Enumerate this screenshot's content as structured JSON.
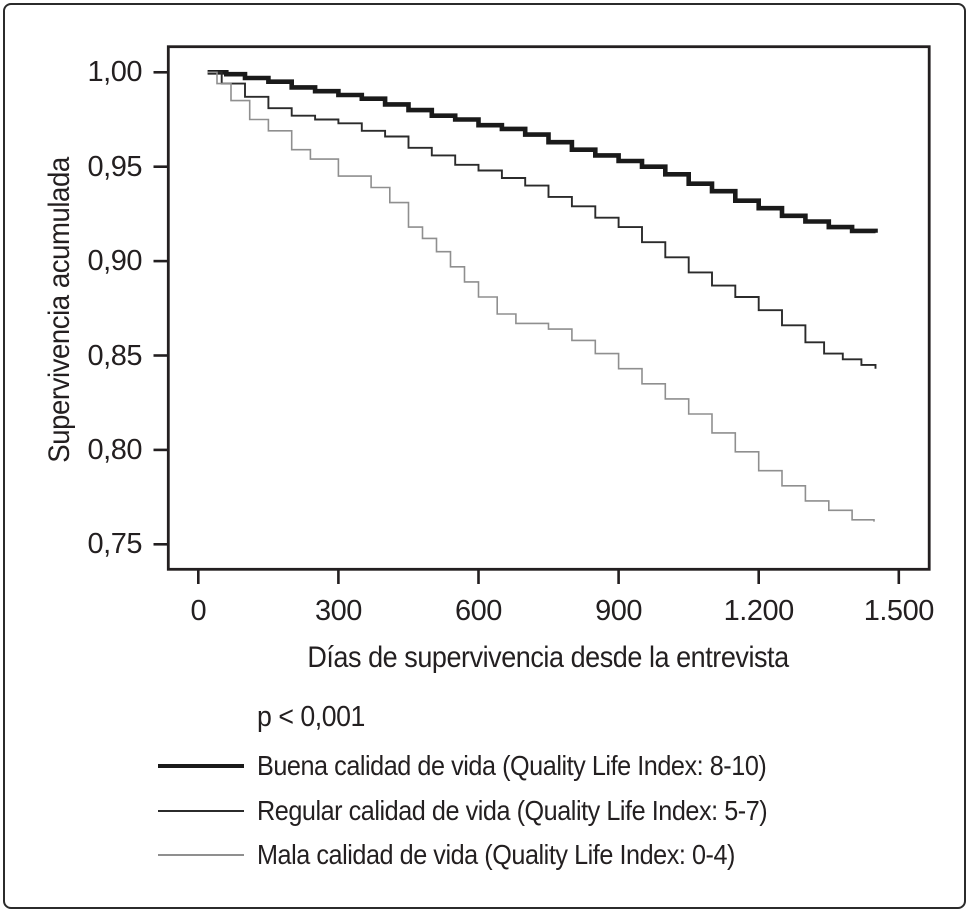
{
  "figure": {
    "background": "#ffffff",
    "border_color": "#2b2b2b",
    "text_color": "#231f20"
  },
  "chart_data": {
    "type": "line",
    "subtype": "kaplan-meier-step-survival",
    "title": "",
    "xlabel": "Días de supervivencia desde la entrevista",
    "ylabel": "Supervivencia acumulada",
    "annotation": "p < 0,001",
    "xlim": [
      0,
      1500
    ],
    "ylim": [
      0.75,
      1.0
    ],
    "grid": false,
    "legend_position": "bottom-left",
    "x_ticks": {
      "values": [
        0,
        300,
        600,
        900,
        1200,
        1500
      ],
      "labels": [
        "0",
        "300",
        "600",
        "900",
        "1.200",
        "1.500"
      ]
    },
    "y_ticks": {
      "values": [
        1.0,
        0.95,
        0.9,
        0.85,
        0.8,
        0.75
      ],
      "labels": [
        "1,00",
        "0,95",
        "0,90",
        "0,85",
        "0,80",
        "0,75"
      ]
    },
    "series": [
      {
        "key": "buena",
        "label": "Buena calidad de vida (Quality Life Index: 8-10)",
        "color": "#1a1a1a",
        "stroke_width": 4.6,
        "points": [
          [
            20,
            1.0
          ],
          [
            60,
            0.999
          ],
          [
            100,
            0.997
          ],
          [
            150,
            0.995
          ],
          [
            200,
            0.992
          ],
          [
            250,
            0.99
          ],
          [
            300,
            0.988
          ],
          [
            350,
            0.986
          ],
          [
            400,
            0.983
          ],
          [
            450,
            0.98
          ],
          [
            500,
            0.977
          ],
          [
            550,
            0.975
          ],
          [
            600,
            0.972
          ],
          [
            650,
            0.97
          ],
          [
            700,
            0.967
          ],
          [
            750,
            0.963
          ],
          [
            800,
            0.959
          ],
          [
            850,
            0.956
          ],
          [
            900,
            0.953
          ],
          [
            950,
            0.95
          ],
          [
            1000,
            0.946
          ],
          [
            1050,
            0.941
          ],
          [
            1100,
            0.937
          ],
          [
            1150,
            0.932
          ],
          [
            1200,
            0.928
          ],
          [
            1250,
            0.924
          ],
          [
            1300,
            0.921
          ],
          [
            1350,
            0.918
          ],
          [
            1400,
            0.916
          ],
          [
            1450,
            0.915
          ]
        ]
      },
      {
        "key": "regular",
        "label": "Regular calidad de vida (Quality Life Index: 5-7)",
        "color": "#2b2b2b",
        "stroke_width": 1.9,
        "points": [
          [
            20,
            1.0
          ],
          [
            50,
            0.994
          ],
          [
            100,
            0.987
          ],
          [
            150,
            0.981
          ],
          [
            200,
            0.977
          ],
          [
            250,
            0.975
          ],
          [
            300,
            0.973
          ],
          [
            350,
            0.969
          ],
          [
            400,
            0.966
          ],
          [
            450,
            0.96
          ],
          [
            500,
            0.956
          ],
          [
            550,
            0.951
          ],
          [
            600,
            0.948
          ],
          [
            650,
            0.944
          ],
          [
            700,
            0.94
          ],
          [
            750,
            0.934
          ],
          [
            800,
            0.929
          ],
          [
            850,
            0.923
          ],
          [
            900,
            0.918
          ],
          [
            950,
            0.91
          ],
          [
            1000,
            0.902
          ],
          [
            1050,
            0.894
          ],
          [
            1100,
            0.887
          ],
          [
            1150,
            0.881
          ],
          [
            1200,
            0.874
          ],
          [
            1250,
            0.866
          ],
          [
            1300,
            0.857
          ],
          [
            1340,
            0.851
          ],
          [
            1380,
            0.848
          ],
          [
            1420,
            0.845
          ],
          [
            1450,
            0.843
          ]
        ]
      },
      {
        "key": "mala",
        "label": "Mala calidad de vida (Quality Life Index: 0-4)",
        "color": "#8f8f8f",
        "stroke_width": 1.6,
        "points": [
          [
            20,
            1.0
          ],
          [
            40,
            0.994
          ],
          [
            70,
            0.985
          ],
          [
            110,
            0.975
          ],
          [
            150,
            0.969
          ],
          [
            200,
            0.959
          ],
          [
            240,
            0.954
          ],
          [
            300,
            0.945
          ],
          [
            370,
            0.939
          ],
          [
            410,
            0.931
          ],
          [
            450,
            0.918
          ],
          [
            480,
            0.912
          ],
          [
            510,
            0.905
          ],
          [
            540,
            0.897
          ],
          [
            570,
            0.889
          ],
          [
            600,
            0.881
          ],
          [
            640,
            0.872
          ],
          [
            680,
            0.867
          ],
          [
            750,
            0.864
          ],
          [
            800,
            0.858
          ],
          [
            850,
            0.851
          ],
          [
            900,
            0.843
          ],
          [
            950,
            0.835
          ],
          [
            1000,
            0.827
          ],
          [
            1050,
            0.819
          ],
          [
            1100,
            0.809
          ],
          [
            1150,
            0.799
          ],
          [
            1200,
            0.789
          ],
          [
            1250,
            0.781
          ],
          [
            1300,
            0.773
          ],
          [
            1350,
            0.768
          ],
          [
            1400,
            0.763
          ],
          [
            1447,
            0.762
          ]
        ]
      }
    ]
  }
}
